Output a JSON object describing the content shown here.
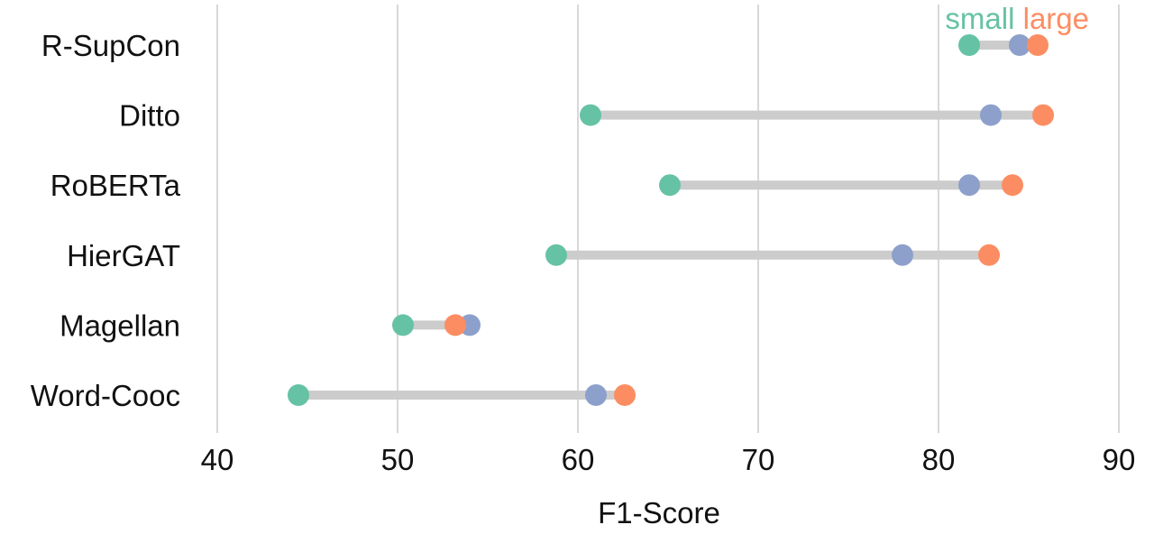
{
  "chart_data": {
    "type": "dumbbell",
    "xlabel": "F1-Score",
    "xlim": [
      40,
      90
    ],
    "xticks": [
      40,
      50,
      60,
      70,
      80,
      90
    ],
    "grid": "vertical",
    "legend": {
      "placement": "top-right",
      "entries": [
        {
          "label": "small",
          "color": "#66c2a5"
        },
        {
          "label": "large",
          "color": "#fc8d62"
        }
      ]
    },
    "colors": {
      "small": "#66c2a5",
      "medium": "#8da0cb",
      "large": "#fc8d62",
      "bar": "#cccccc",
      "grid": "#cccccc"
    },
    "categories": [
      "R-SupCon",
      "Ditto",
      "RoBERTa",
      "HierGAT",
      "Magellan",
      "Word-Cooc"
    ],
    "series": [
      {
        "key": "small",
        "values": [
          81.7,
          60.7,
          65.1,
          58.8,
          50.3,
          44.5
        ]
      },
      {
        "key": "medium",
        "values": [
          84.5,
          82.9,
          81.7,
          78.0,
          54.0,
          61.0
        ]
      },
      {
        "key": "large",
        "values": [
          85.5,
          85.8,
          84.1,
          82.8,
          53.2,
          62.6
        ]
      }
    ]
  }
}
